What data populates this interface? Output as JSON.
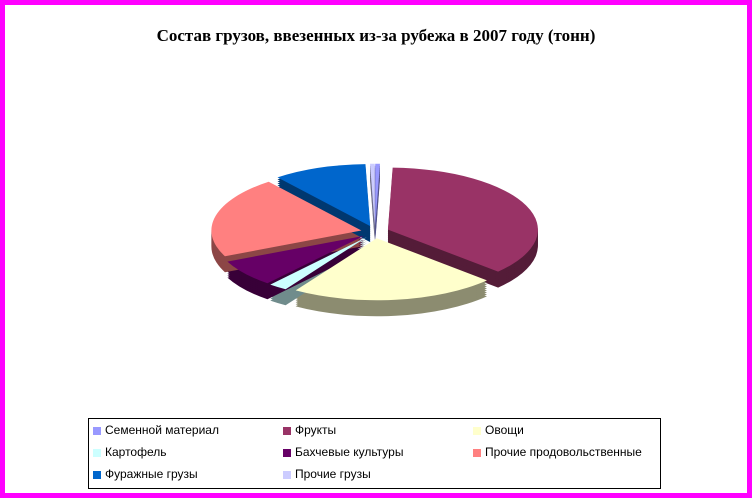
{
  "chart_data": {
    "type": "pie",
    "title": "Состав грузов, ввезенных из-за рубежа в 2007 году (тонн)",
    "categories": [
      "Семенной материал",
      "Фрукты",
      "Овощи",
      "Картофель",
      "Бахчевые культуры",
      "Прочие продовольственные",
      "Фуражные грузы",
      "Прочие грузы"
    ],
    "values": [
      0.5,
      36,
      22,
      2,
      7,
      21,
      10,
      0.5
    ],
    "colors": [
      "#9999ff",
      "#993366",
      "#ffffcc",
      "#ccffff",
      "#660066",
      "#ff8080",
      "#0066cc",
      "#ccccff"
    ]
  }
}
